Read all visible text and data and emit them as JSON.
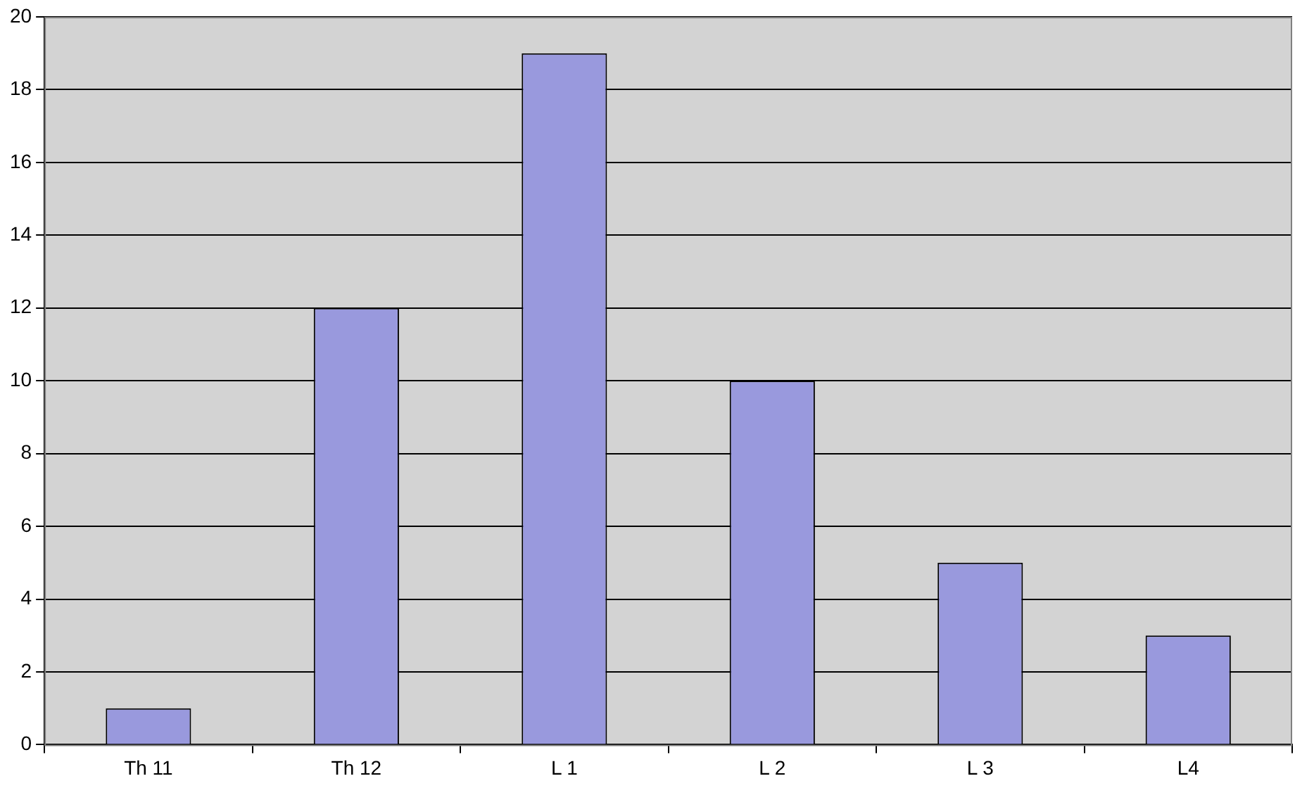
{
  "chart_data": {
    "type": "bar",
    "categories": [
      "Th 11",
      "Th 12",
      "L 1",
      "L 2",
      "L 3",
      "L4"
    ],
    "values": [
      1,
      12,
      19,
      10,
      5,
      3
    ],
    "color": "#9999dd",
    "ylim": [
      0,
      20
    ],
    "yticks": [
      0,
      2,
      4,
      6,
      8,
      10,
      12,
      14,
      16,
      18,
      20
    ],
    "grid": "y"
  }
}
